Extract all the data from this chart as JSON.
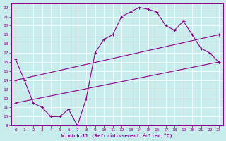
{
  "xlabel": "Windchill (Refroidissement éolien,°C)",
  "bg_color": "#c8ecec",
  "line_color": "#8b008b",
  "grid_color": "#ffffff",
  "xmin": 0,
  "xmax": 23,
  "ymin": 9,
  "ymax": 22,
  "line1_x": [
    0,
    1,
    2,
    3,
    4,
    5,
    6,
    7,
    8,
    9,
    10,
    11,
    12,
    13,
    14,
    15,
    16,
    17,
    18,
    19,
    20,
    21,
    22,
    23
  ],
  "line1_y": [
    16.3,
    14.0,
    11.5,
    11.0,
    10.0,
    10.0,
    10.8,
    9.0,
    12.0,
    17.0,
    18.5,
    19.0,
    21.0,
    21.5,
    22.0,
    21.8,
    21.5,
    20.0,
    19.5,
    20.5,
    19.0,
    17.5,
    17.0,
    16.0
  ],
  "line2_x": [
    0,
    23
  ],
  "line2_y": [
    11.5,
    16.0
  ],
  "line3_x": [
    0,
    23
  ],
  "line3_y": [
    14.0,
    19.0
  ]
}
